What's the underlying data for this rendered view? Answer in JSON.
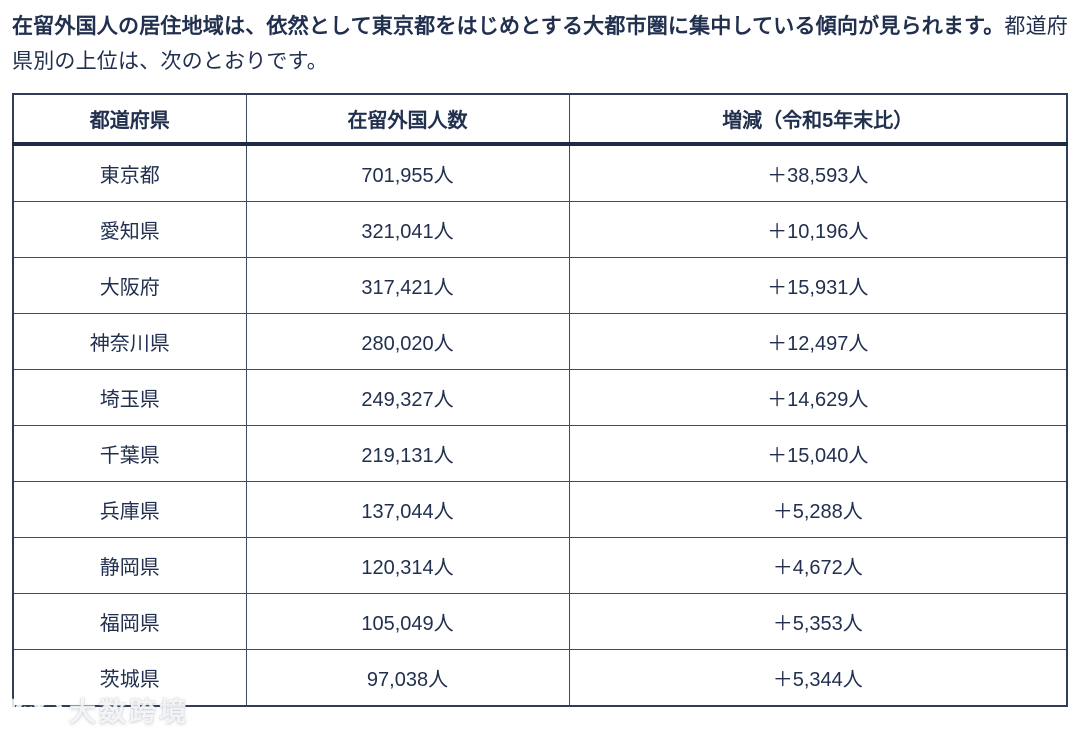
{
  "intro": {
    "bold_sentence": "在留外国人の居住地域は、依然として東京都をはじめとする大都市圏に集中している傾向が見られます。",
    "regular_sentence": "都道府県別の上位は、次のとおりです。"
  },
  "table": {
    "columns": [
      "都道府県",
      "在留外国人数",
      "増減（令和5年末比）"
    ],
    "rows": [
      {
        "prefecture": "東京都",
        "residents": "701,955人",
        "change": "＋38,593人"
      },
      {
        "prefecture": "愛知県",
        "residents": "321,041人",
        "change": "＋10,196人"
      },
      {
        "prefecture": "大阪府",
        "residents": "317,421人",
        "change": "＋15,931人"
      },
      {
        "prefecture": "神奈川県",
        "residents": "280,020人",
        "change": "＋12,497人"
      },
      {
        "prefecture": "埼玉県",
        "residents": "249,327人",
        "change": "＋14,629人"
      },
      {
        "prefecture": "千葉県",
        "residents": "219,131人",
        "change": "＋15,040人"
      },
      {
        "prefecture": "兵庫県",
        "residents": "137,044人",
        "change": "＋5,288人"
      },
      {
        "prefecture": "静岡県",
        "residents": "120,314人",
        "change": "＋4,672人"
      },
      {
        "prefecture": "福岡県",
        "residents": "105,049人",
        "change": "＋5,353人"
      },
      {
        "prefecture": "茨城県",
        "residents": "97,038人",
        "change": "＋5,344人"
      }
    ]
  },
  "watermark": {
    "text": "大数跨境",
    "logo": "100-logo"
  },
  "colors": {
    "text": "#22304f",
    "thin_border": "#3c4b63",
    "thick_border": "#1d2b47",
    "background": "#ffffff",
    "watermark_text": "rgba(255,255,255,0.85)"
  }
}
